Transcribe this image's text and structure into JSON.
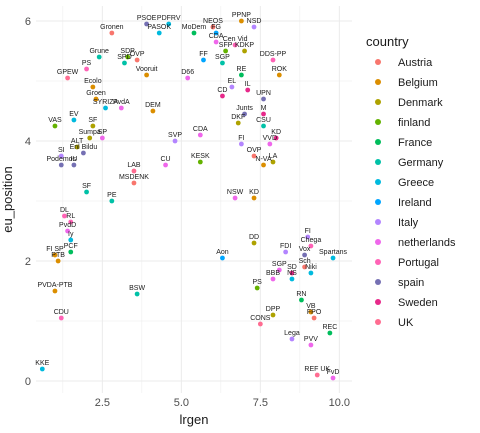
{
  "chart_data": {
    "type": "scatter",
    "title": "",
    "xlabel": "lrgen",
    "ylabel": "eu_position",
    "xlim": [
      0.4,
      10.4
    ],
    "ylim": [
      -0.2,
      6.25
    ],
    "xticks": [
      2.5,
      5.0,
      7.5,
      10.0
    ],
    "yticks": [
      0,
      2,
      4,
      6
    ],
    "grid": true,
    "legend": {
      "title": "country",
      "position": "right",
      "entries": [
        {
          "name": "Austria",
          "color": "#F8766D"
        },
        {
          "name": "Belgium",
          "color": "#DB8E00"
        },
        {
          "name": "Denmark",
          "color": "#AEA200"
        },
        {
          "name": "finland",
          "color": "#64B200"
        },
        {
          "name": "France",
          "color": "#00BD5C"
        },
        {
          "name": "Germany",
          "color": "#00C1A7"
        },
        {
          "name": "Greece",
          "color": "#00BADE"
        },
        {
          "name": "Ireland",
          "color": "#00A6FF"
        },
        {
          "name": "Italy",
          "color": "#B385FF"
        },
        {
          "name": "netherlands",
          "color": "#EF67EB"
        },
        {
          "name": "Portugal",
          "color": "#FF63B6"
        },
        {
          "name": "spain",
          "color": "#7570B3"
        },
        {
          "name": "Sweden",
          "color": "#E7298A"
        },
        {
          "name": "UK",
          "color": "#FF6C91"
        }
      ]
    },
    "points": [
      {
        "label": "PPNP",
        "x": 6.9,
        "y": 6.0,
        "country": "Belgium"
      },
      {
        "label": "NSD",
        "x": 7.3,
        "y": 5.9,
        "country": "Italy"
      },
      {
        "label": "PSOE",
        "x": 3.9,
        "y": 5.95,
        "country": "spain"
      },
      {
        "label": "PDFRV",
        "x": 4.6,
        "y": 5.95,
        "country": "Greece"
      },
      {
        "label": "NEOS",
        "x": 6.0,
        "y": 5.9,
        "country": "Austria"
      },
      {
        "label": "Gronen",
        "x": 2.8,
        "y": 5.8,
        "country": "Austria"
      },
      {
        "label": "PASOK",
        "x": 4.3,
        "y": 5.8,
        "country": "Greece"
      },
      {
        "label": "MoDem",
        "x": 5.4,
        "y": 5.8,
        "country": "France"
      },
      {
        "label": "FG",
        "x": 6.1,
        "y": 5.8,
        "country": "Ireland"
      },
      {
        "label": "CDA",
        "x": 6.1,
        "y": 5.65,
        "country": "netherlands"
      },
      {
        "label": "Cen Vid",
        "x": 6.7,
        "y": 5.6,
        "country": "Portugal"
      },
      {
        "label": "SFP",
        "x": 6.4,
        "y": 5.5,
        "country": "finland"
      },
      {
        "label": "KDKP",
        "x": 7.0,
        "y": 5.5,
        "country": "Denmark"
      },
      {
        "label": "SDP",
        "x": 3.3,
        "y": 5.4,
        "country": "finland"
      },
      {
        "label": "FF",
        "x": 5.7,
        "y": 5.35,
        "country": "Ireland"
      },
      {
        "label": "Grune",
        "x": 2.4,
        "y": 5.4,
        "country": "Germany"
      },
      {
        "label": "SPD",
        "x": 3.2,
        "y": 5.3,
        "country": "Germany"
      },
      {
        "label": "OVP",
        "x": 3.6,
        "y": 5.35,
        "country": "Austria"
      },
      {
        "label": "SGP",
        "x": 6.3,
        "y": 5.3,
        "country": "Germany"
      },
      {
        "label": "DDS-PP",
        "x": 7.9,
        "y": 5.35,
        "country": "Portugal"
      },
      {
        "label": "PS",
        "x": 2.0,
        "y": 5.2,
        "country": "Portugal"
      },
      {
        "label": "GPEW",
        "x": 1.4,
        "y": 5.05,
        "country": "UK"
      },
      {
        "label": "Vooruit",
        "x": 3.9,
        "y": 5.1,
        "country": "Belgium"
      },
      {
        "label": "RE",
        "x": 6.9,
        "y": 5.1,
        "country": "France"
      },
      {
        "label": "ROK",
        "x": 8.1,
        "y": 5.1,
        "country": "Belgium"
      },
      {
        "label": "Ecolo",
        "x": 2.2,
        "y": 4.9,
        "country": "Belgium"
      },
      {
        "label": "D66",
        "x": 5.2,
        "y": 5.05,
        "country": "netherlands"
      },
      {
        "label": "EL",
        "x": 6.6,
        "y": 4.9,
        "country": "Italy"
      },
      {
        "label": "IL",
        "x": 7.1,
        "y": 4.85,
        "country": "Sweden"
      },
      {
        "label": "Groen",
        "x": 2.3,
        "y": 4.7,
        "country": "Belgium"
      },
      {
        "label": "CD",
        "x": 6.3,
        "y": 4.75,
        "country": "Sweden"
      },
      {
        "label": "UPN",
        "x": 7.6,
        "y": 4.7,
        "country": "spain"
      },
      {
        "label": "PvdA",
        "x": 3.1,
        "y": 4.55,
        "country": "netherlands"
      },
      {
        "label": "SYRIZA",
        "x": 2.6,
        "y": 4.55,
        "country": "Greece"
      },
      {
        "label": "DEM",
        "x": 4.1,
        "y": 4.5,
        "country": "Belgium"
      },
      {
        "label": "Junts",
        "x": 7.0,
        "y": 4.45,
        "country": "spain"
      },
      {
        "label": "EV",
        "x": 1.6,
        "y": 4.35,
        "country": "Greece"
      },
      {
        "label": "SF",
        "x": 2.2,
        "y": 4.25,
        "country": "Denmark"
      },
      {
        "label": "M",
        "x": 7.6,
        "y": 4.45,
        "country": "Sweden"
      },
      {
        "label": "DKF",
        "x": 6.8,
        "y": 4.3,
        "country": "Denmark"
      },
      {
        "label": "CSU",
        "x": 7.6,
        "y": 4.25,
        "country": "Germany"
      },
      {
        "label": "VAS",
        "x": 1.0,
        "y": 4.25,
        "country": "finland"
      },
      {
        "label": "CDA",
        "x": 5.6,
        "y": 4.1,
        "country": "netherlands"
      },
      {
        "label": "KD",
        "x": 8.0,
        "y": 4.05,
        "country": "Sweden"
      },
      {
        "label": "Sumpa",
        "x": 2.1,
        "y": 4.05,
        "country": "Denmark"
      },
      {
        "label": "SP",
        "x": 2.5,
        "y": 4.05,
        "country": "netherlands"
      },
      {
        "label": "SVP",
        "x": 4.8,
        "y": 4.0,
        "country": "Italy"
      },
      {
        "label": "FI",
        "x": 6.9,
        "y": 3.95,
        "country": "Italy"
      },
      {
        "label": "VVD",
        "x": 7.8,
        "y": 3.95,
        "country": "netherlands"
      },
      {
        "label": "ALT",
        "x": 1.7,
        "y": 3.9,
        "country": "Denmark"
      },
      {
        "label": "Enl Bildu",
        "x": 1.9,
        "y": 3.8,
        "country": "spain"
      },
      {
        "label": "OVP",
        "x": 7.3,
        "y": 3.75,
        "country": "Austria"
      },
      {
        "label": "KESK",
        "x": 5.6,
        "y": 3.65,
        "country": "finland"
      },
      {
        "label": "LA",
        "x": 7.9,
        "y": 3.65,
        "country": "Denmark"
      },
      {
        "label": "Podemos",
        "x": 1.2,
        "y": 3.6,
        "country": "spain"
      },
      {
        "label": "SI",
        "x": 1.2,
        "y": 3.75,
        "country": "Italy"
      },
      {
        "label": "IU",
        "x": 1.6,
        "y": 3.6,
        "country": "spain"
      },
      {
        "label": "CU",
        "x": 4.5,
        "y": 3.6,
        "country": "netherlands"
      },
      {
        "label": "N-VA",
        "x": 7.6,
        "y": 3.6,
        "country": "Belgium"
      },
      {
        "label": "LAB",
        "x": 3.5,
        "y": 3.5,
        "country": "UK"
      },
      {
        "label": "MSDENK",
        "x": 3.5,
        "y": 3.3,
        "country": "Austria"
      },
      {
        "label": "SF",
        "x": 2.0,
        "y": 3.15,
        "country": "Germany"
      },
      {
        "label": "PE",
        "x": 2.8,
        "y": 3.0,
        "country": "Germany"
      },
      {
        "label": "NSW",
        "x": 6.7,
        "y": 3.05,
        "country": "netherlands"
      },
      {
        "label": "KD",
        "x": 7.3,
        "y": 3.05,
        "country": "Belgium"
      },
      {
        "label": "DL",
        "x": 1.3,
        "y": 2.75,
        "country": "Portugal"
      },
      {
        "label": "RL",
        "x": 1.5,
        "y": 2.65,
        "country": "Portugal"
      },
      {
        "label": "PvdD",
        "x": 1.4,
        "y": 2.5,
        "country": "netherlands"
      },
      {
        "label": "Iy",
        "x": 1.5,
        "y": 2.35,
        "country": "Greece"
      },
      {
        "label": "FI",
        "x": 9.0,
        "y": 2.4,
        "country": "Italy"
      },
      {
        "label": "Chega",
        "x": 9.1,
        "y": 2.25,
        "country": "Portugal"
      },
      {
        "label": "DD",
        "x": 7.3,
        "y": 2.3,
        "country": "Denmark"
      },
      {
        "label": "FDI",
        "x": 8.3,
        "y": 2.15,
        "country": "Italy"
      },
      {
        "label": "Vox",
        "x": 8.9,
        "y": 2.1,
        "country": "spain"
      },
      {
        "label": "Spartans",
        "x": 9.8,
        "y": 2.05,
        "country": "Greece"
      },
      {
        "label": "PCF",
        "x": 1.5,
        "y": 2.15,
        "country": "France"
      },
      {
        "label": "FI SP",
        "x": 1.0,
        "y": 2.1,
        "country": "Belgium"
      },
      {
        "label": "Aon",
        "x": 6.3,
        "y": 2.05,
        "country": "Ireland"
      },
      {
        "label": "PTB",
        "x": 1.1,
        "y": 2.0,
        "country": "Belgium"
      },
      {
        "label": "Sch",
        "x": 8.9,
        "y": 1.9,
        "country": "Austria"
      },
      {
        "label": "SGP",
        "x": 8.1,
        "y": 1.85,
        "country": "netherlands"
      },
      {
        "label": "SD",
        "x": 8.5,
        "y": 1.8,
        "country": "Sweden"
      },
      {
        "label": "BBB",
        "x": 7.9,
        "y": 1.7,
        "country": "netherlands"
      },
      {
        "label": "NS",
        "x": 8.5,
        "y": 1.7,
        "country": "Greece"
      },
      {
        "label": "Niki",
        "x": 9.1,
        "y": 1.8,
        "country": "Greece"
      },
      {
        "label": "PS",
        "x": 7.4,
        "y": 1.55,
        "country": "finland"
      },
      {
        "label": "PVDA-PTB",
        "x": 1.0,
        "y": 1.5,
        "country": "Belgium"
      },
      {
        "label": "BSW",
        "x": 3.6,
        "y": 1.45,
        "country": "Germany"
      },
      {
        "label": "RN",
        "x": 8.8,
        "y": 1.35,
        "country": "France"
      },
      {
        "label": "VB",
        "x": 9.1,
        "y": 1.15,
        "country": "Belgium"
      },
      {
        "label": "FPO",
        "x": 9.2,
        "y": 1.05,
        "country": "Austria"
      },
      {
        "label": "DPP",
        "x": 7.9,
        "y": 1.1,
        "country": "Denmark"
      },
      {
        "label": "CDU",
        "x": 1.2,
        "y": 1.05,
        "country": "Portugal"
      },
      {
        "label": "CONS",
        "x": 7.5,
        "y": 0.95,
        "country": "UK"
      },
      {
        "label": "REC",
        "x": 9.7,
        "y": 0.8,
        "country": "France"
      },
      {
        "label": "Lega",
        "x": 8.5,
        "y": 0.7,
        "country": "Italy"
      },
      {
        "label": "PVV",
        "x": 9.1,
        "y": 0.6,
        "country": "netherlands"
      },
      {
        "label": "REF UK",
        "x": 9.3,
        "y": 0.1,
        "country": "UK"
      },
      {
        "label": "FvD",
        "x": 9.8,
        "y": 0.05,
        "country": "netherlands"
      },
      {
        "label": "KKE",
        "x": 0.6,
        "y": 0.2,
        "country": "Greece"
      }
    ]
  }
}
